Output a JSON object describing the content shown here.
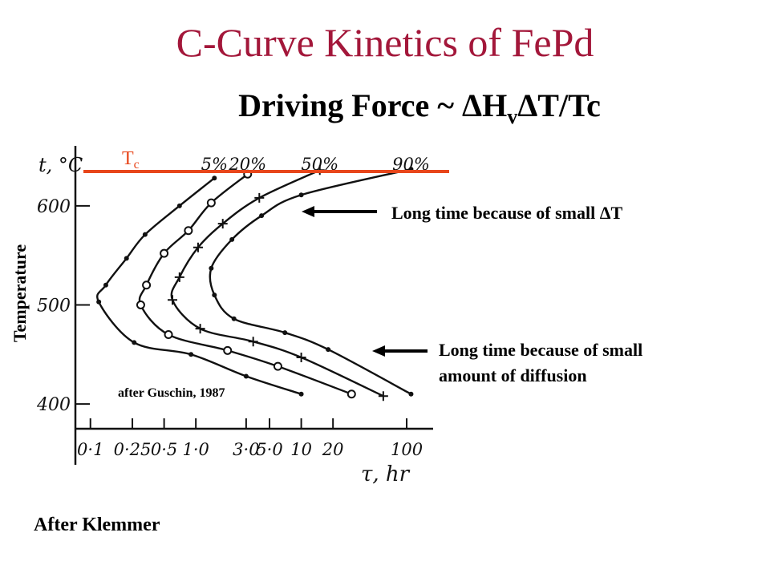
{
  "slide": {
    "title": "C-Curve Kinetics of FePd",
    "subtitle_prefix": "Driving Force ~ ΔH",
    "subtitle_sub": "v",
    "subtitle_suffix": "ΔT/Tc",
    "annotation_top": "Long time because of small ΔT",
    "annotation_bottom_line1": "Long time because of small",
    "annotation_bottom_line2": "amount of diffusion",
    "ylabel": "Temperature",
    "credit": "after Guschin, 1987",
    "footer": "After Klemmer"
  },
  "colors": {
    "title": "#a3173a",
    "tc_line": "#e8461b",
    "ink": "#111111"
  },
  "chart_data": {
    "type": "line",
    "title": "",
    "xlabel": "τ, hr",
    "ylabel": "t, °C",
    "x_scale": "log",
    "x_tick_labels": [
      "0·1",
      "0·25",
      "0·5",
      "1·0",
      "3·0",
      "5·0",
      "10",
      "20",
      "100"
    ],
    "x_tick_values": [
      0.1,
      0.25,
      0.5,
      1.0,
      3.0,
      5.0,
      10,
      20,
      100
    ],
    "y_tick_labels": [
      "400",
      "500",
      "600"
    ],
    "y_tick_values": [
      400,
      500,
      600
    ],
    "ylim": [
      375,
      650
    ],
    "xlim": [
      0.08,
      130
    ],
    "tc_label": "T",
    "tc_label_sub": "c",
    "tc_value": 640,
    "series": [
      {
        "name": "5%",
        "marker": "dot",
        "points": [
          [
            1.5,
            628
          ],
          [
            0.7,
            600
          ],
          [
            0.33,
            571
          ],
          [
            0.22,
            547
          ],
          [
            0.14,
            520
          ],
          [
            0.12,
            503
          ],
          [
            0.26,
            462
          ],
          [
            0.9,
            450
          ],
          [
            3.0,
            428
          ],
          [
            10,
            410
          ]
        ]
      },
      {
        "name": "20%",
        "marker": "circle",
        "points": [
          [
            3.1,
            632
          ],
          [
            1.4,
            603
          ],
          [
            0.85,
            575
          ],
          [
            0.5,
            552
          ],
          [
            0.34,
            520
          ],
          [
            0.3,
            500
          ],
          [
            0.55,
            470
          ],
          [
            2.0,
            454
          ],
          [
            6.0,
            438
          ],
          [
            30,
            410
          ]
        ]
      },
      {
        "name": "50%",
        "marker": "plus",
        "points": [
          [
            15,
            636
          ],
          [
            4.0,
            608
          ],
          [
            1.8,
            582
          ],
          [
            1.05,
            558
          ],
          [
            0.7,
            528
          ],
          [
            0.6,
            505
          ],
          [
            1.1,
            476
          ],
          [
            3.5,
            463
          ],
          [
            10,
            447
          ],
          [
            60,
            408
          ]
        ]
      },
      {
        "name": "90%",
        "marker": "dot",
        "points": [
          [
            110,
            637
          ],
          [
            10,
            611
          ],
          [
            4.2,
            590
          ],
          [
            2.2,
            566
          ],
          [
            1.4,
            537
          ],
          [
            1.5,
            510
          ],
          [
            2.3,
            486
          ],
          [
            7.0,
            472
          ],
          [
            18,
            455
          ],
          [
            110,
            410
          ]
        ]
      }
    ]
  }
}
